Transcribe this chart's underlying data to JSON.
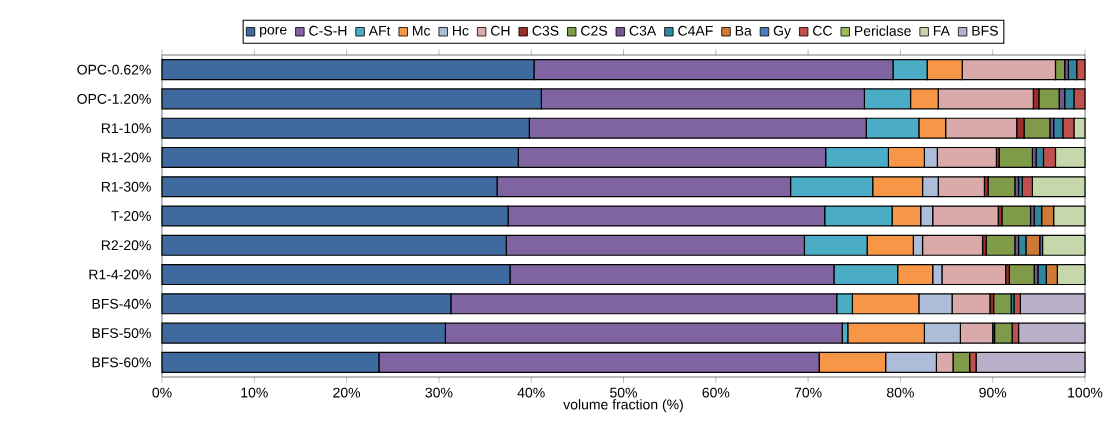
{
  "chart_data": {
    "type": "bar",
    "orientation": "horizontal",
    "stacked": true,
    "xlabel": "volume fraction (%)",
    "categories": [
      "OPC-0.62%",
      "OPC-1.20%",
      "R1-10%",
      "R1-20%",
      "R1-30%",
      "T-20%",
      "R2-20%",
      "R1-4-20%",
      "BFS-40%",
      "BFS-50%",
      "BFS-60%"
    ],
    "xlim": [
      0,
      100
    ],
    "xticks": [
      {
        "value": 0,
        "label": "0%"
      },
      {
        "value": 10,
        "label": "10%"
      },
      {
        "value": 20,
        "label": "20%"
      },
      {
        "value": 30,
        "label": "30%"
      },
      {
        "value": 40,
        "label": "40%"
      },
      {
        "value": 50,
        "label": "50%"
      },
      {
        "value": 60,
        "label": "60%"
      },
      {
        "value": 70,
        "label": "70%"
      },
      {
        "value": 80,
        "label": "80%"
      },
      {
        "value": 90,
        "label": "90%"
      },
      {
        "value": 100,
        "label": "100%"
      }
    ],
    "legend": "top",
    "grid": false,
    "series": [
      {
        "name": "pore",
        "color": "#3f6a9f",
        "values": [
          40.3,
          41.1,
          39.8,
          38.6,
          36.3,
          37.5,
          37.3,
          37.7,
          31.3,
          30.7,
          23.5
        ]
      },
      {
        "name": "C-S-H",
        "color": "#8064a2",
        "values": [
          38.9,
          35.0,
          36.5,
          33.3,
          31.8,
          34.3,
          32.3,
          35.1,
          41.8,
          43.0,
          47.7
        ]
      },
      {
        "name": "AFt",
        "color": "#4bacc6",
        "values": [
          3.7,
          5.0,
          5.7,
          6.8,
          8.9,
          7.3,
          6.8,
          6.9,
          1.7,
          0.6,
          0
        ]
      },
      {
        "name": "Mc",
        "color": "#f79646",
        "values": [
          3.8,
          3.0,
          2.9,
          3.9,
          5.4,
          3.1,
          5.0,
          3.8,
          7.2,
          8.3,
          7.2
        ]
      },
      {
        "name": "Hc",
        "color": "#adbcd9",
        "values": [
          0,
          0,
          0,
          1.4,
          1.7,
          1.3,
          1.0,
          1.0,
          3.6,
          3.9,
          5.5
        ]
      },
      {
        "name": "CH",
        "color": "#d9aaa9",
        "values": [
          10.1,
          10.3,
          7.7,
          6.4,
          5.0,
          7.1,
          6.5,
          6.9,
          4.1,
          3.5,
          1.8
        ]
      },
      {
        "name": "C3S",
        "color": "#9b2d2a",
        "values": [
          0,
          0.6,
          0.8,
          0.3,
          0.4,
          0.4,
          0.4,
          0.4,
          0.4,
          0.2,
          0
        ]
      },
      {
        "name": "C2S",
        "color": "#7f9a48",
        "values": [
          1.0,
          2.2,
          2.8,
          3.6,
          2.9,
          3.1,
          3.1,
          2.7,
          1.9,
          1.9,
          1.8
        ]
      },
      {
        "name": "C3A",
        "color": "#71588f",
        "values": [
          0.4,
          0.6,
          0.4,
          0.4,
          0.4,
          0.4,
          0.4,
          0.4,
          0,
          0,
          0
        ]
      },
      {
        "name": "C4AF",
        "color": "#31859c",
        "values": [
          0.9,
          1.0,
          1.0,
          0.8,
          0.4,
          0.8,
          0.8,
          0.9,
          0.3,
          0,
          0
        ]
      },
      {
        "name": "Ba",
        "color": "#cc7a36",
        "values": [
          0,
          0,
          0,
          0,
          0,
          1.3,
          1.5,
          1.2,
          0,
          0,
          0
        ]
      },
      {
        "name": "Gy",
        "color": "#4a7dbf",
        "values": [
          0,
          0,
          0,
          0,
          0,
          0,
          0.3,
          0,
          0,
          0,
          0
        ]
      },
      {
        "name": "CC",
        "color": "#c0504d",
        "values": [
          0.9,
          1.2,
          1.2,
          1.3,
          1.1,
          0,
          0,
          0,
          0.7,
          0.7,
          0.7
        ]
      },
      {
        "name": "Periclase",
        "color": "#9bbb59",
        "values": [
          0,
          0,
          0,
          0,
          0,
          0,
          0,
          0,
          0,
          0,
          0
        ]
      },
      {
        "name": "FA",
        "color": "#c6d7ac",
        "values": [
          0,
          0,
          1.2,
          3.2,
          5.7,
          3.4,
          4.6,
          3.0,
          0,
          0,
          0
        ]
      },
      {
        "name": "BFS",
        "color": "#b9afc9",
        "values": [
          0,
          0,
          0,
          0,
          0,
          0,
          0,
          0,
          7.0,
          7.2,
          11.8
        ]
      }
    ]
  }
}
